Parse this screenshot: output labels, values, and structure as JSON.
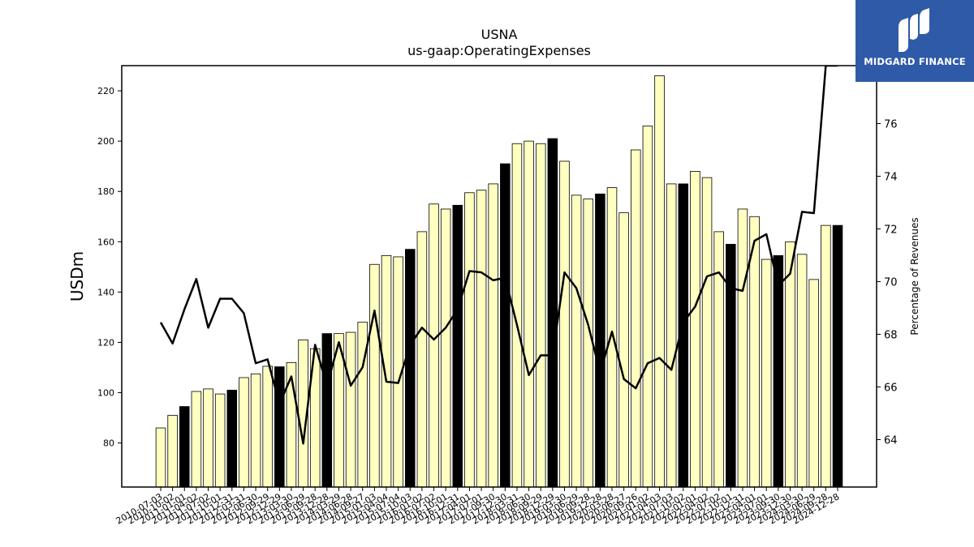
{
  "chart_data": {
    "type": "bar",
    "title": "USNA",
    "subtitle": "us-gaap:OperatingExpenses",
    "ylabel": "USDm",
    "y2label": "Percentage of Revenues",
    "ylim": [
      62.5,
      230
    ],
    "y2lim": [
      62.2,
      78.2
    ],
    "yticks": [
      80,
      100,
      120,
      140,
      160,
      180,
      200,
      220
    ],
    "y2ticks": [
      64,
      66,
      68,
      70,
      72,
      74,
      76
    ],
    "categories": [
      "2010-07-03",
      "2010-10-02",
      "2011-01-01",
      "2011-04-02",
      "2011-07-02",
      "2011-10-01",
      "2011-12-31",
      "2012-03-31",
      "2012-06-30",
      "2012-09-29",
      "2012-12-29",
      "2013-03-30",
      "2013-06-29",
      "2013-09-28",
      "2013-12-28",
      "2014-03-29",
      "2014-06-28",
      "2014-09-27",
      "2015-01-03",
      "2015-04-04",
      "2015-07-04",
      "2015-10-03",
      "2016-01-02",
      "2016-07-02",
      "2016-10-01",
      "2016-12-31",
      "2017-04-01",
      "2017-07-01",
      "2017-09-30",
      "2017-12-30",
      "2018-03-31",
      "2018-06-30",
      "2018-09-29",
      "2018-12-29",
      "2019-03-30",
      "2019-06-29",
      "2019-09-28",
      "2019-12-28",
      "2020-03-28",
      "2020-06-27",
      "2020-09-26",
      "2021-01-02",
      "2021-04-03",
      "2021-07-03",
      "2021-10-02",
      "2022-01-01",
      "2022-04-02",
      "2022-07-02",
      "2022-10-01",
      "2022-12-31",
      "2023-04-01",
      "2023-07-01",
      "2023-09-30",
      "2023-12-30",
      "2024-03-30",
      "2024-06-29",
      "2024-09-28",
      "2024-12-28"
    ],
    "series": [
      {
        "values": [
          86,
          91,
          94.5,
          100.5,
          101.5,
          99.5,
          101,
          106,
          107.5,
          110.5,
          110.3,
          112,
          121,
          117.5,
          123.5,
          123.5,
          124,
          128,
          151,
          154.5,
          154,
          157,
          164,
          175,
          173,
          174.5,
          179.5,
          180.5,
          183,
          191,
          199,
          200,
          199,
          201,
          192,
          178.5,
          177,
          179,
          181.5,
          171.5,
          196.5,
          206,
          226,
          183,
          183,
          188,
          185.5,
          164,
          159,
          173,
          170,
          153,
          154.5,
          160,
          155,
          145,
          166.5,
          166.5
        ],
        "colors": [
          "#ffffc0",
          "#ffffc0",
          "#000000",
          "#ffffc0",
          "#ffffc0",
          "#ffffc0",
          "#000000",
          "#ffffc0",
          "#ffffc0",
          "#ffffc0",
          "#000000",
          "#ffffc0",
          "#ffffc0",
          "#ffffc0",
          "#000000",
          "#ffffc0",
          "#ffffc0",
          "#ffffc0",
          "#ffffc0",
          "#ffffc0",
          "#ffffc0",
          "#000000",
          "#ffffc0",
          "#ffffc0",
          "#ffffc0",
          "#000000",
          "#ffffc0",
          "#ffffc0",
          "#ffffc0",
          "#000000",
          "#ffffc0",
          "#ffffc0",
          "#ffffc0",
          "#000000",
          "#ffffc0",
          "#ffffc0",
          "#ffffc0",
          "#000000",
          "#ffffc0",
          "#ffffc0",
          "#ffffc0",
          "#ffffc0",
          "#ffffc0",
          "#ffffc0",
          "#000000",
          "#ffffc0",
          "#ffffc0",
          "#ffffc0",
          "#000000",
          "#ffffc0",
          "#ffffc0",
          "#ffffc0",
          "#000000",
          "#ffffc0",
          "#ffffc0",
          "#ffffc0",
          "#ffffc0",
          "#000000"
        ]
      },
      {
        "type": "line",
        "axis": "right",
        "values": [
          68.45,
          67.65,
          68.95,
          70.1,
          68.25,
          69.35,
          69.35,
          68.8,
          66.9,
          67.05,
          65.35,
          66.4,
          63.85,
          67.6,
          66.05,
          67.7,
          66.05,
          66.75,
          68.9,
          66.2,
          66.15,
          67.6,
          68.25,
          67.8,
          68.25,
          68.95,
          70.4,
          70.35,
          70.05,
          70.15,
          68.35,
          66.45,
          67.2,
          67.2,
          70.35,
          69.75,
          68.35,
          66.55,
          68.1,
          66.3,
          65.95,
          66.9,
          67.1,
          66.65,
          68.45,
          69.05,
          70.2,
          70.35,
          69.75,
          69.65,
          71.55,
          71.8,
          69.85,
          70.3,
          72.65,
          72.6,
          78.2,
          78.2
        ]
      }
    ]
  },
  "logo": {
    "text": "MIDGARD FINANCE"
  }
}
